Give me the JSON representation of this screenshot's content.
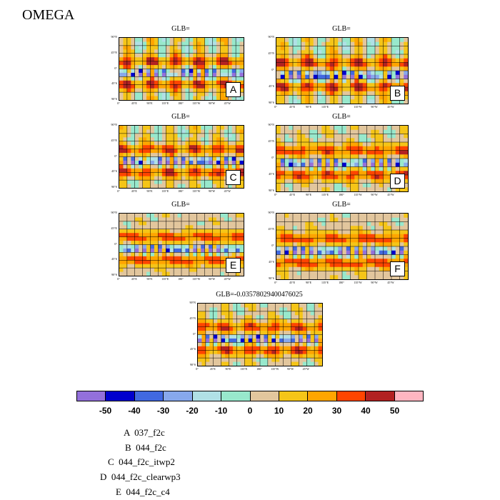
{
  "title": "OMEGA",
  "chart_data": {
    "type": "heatmap",
    "variable": "OMEGA",
    "panels": [
      {
        "tag": "A",
        "title": "GLB="
      },
      {
        "tag": "B",
        "title": "GLB="
      },
      {
        "tag": "C",
        "title": "GLB="
      },
      {
        "tag": "D",
        "title": "GLB="
      },
      {
        "tag": "E",
        "title": "GLB="
      },
      {
        "tag": "F",
        "title": "GLB="
      },
      {
        "tag": "",
        "title": "GLB=-0.03578029400476025"
      }
    ],
    "lat_ticks": [
      "90°N",
      "45°N",
      "0°",
      "45°S",
      "90°S"
    ],
    "lon_ticks": [
      "0°",
      "45°E",
      "90°E",
      "135°E",
      "180°",
      "135°W",
      "90°W",
      "45°W"
    ],
    "colorbar": {
      "colors": [
        "#9370db",
        "#0000cd",
        "#4169e1",
        "#87a8ec",
        "#b0e0e6",
        "#98e8cc",
        "#e2c69d",
        "#f5c518",
        "#ffa500",
        "#ff4500",
        "#b22222",
        "#ffb6c1"
      ],
      "labels": [
        "-50",
        "-40",
        "-30",
        "-20",
        "-10",
        "0",
        "10",
        "20",
        "30",
        "40",
        "50"
      ]
    },
    "legend": [
      "A  037_f2c",
      "B  044_f2c",
      "C  044_f2c_itwp2",
      "D  044_f2c_clearwp3",
      "E  044_f2c_c4"
    ]
  }
}
